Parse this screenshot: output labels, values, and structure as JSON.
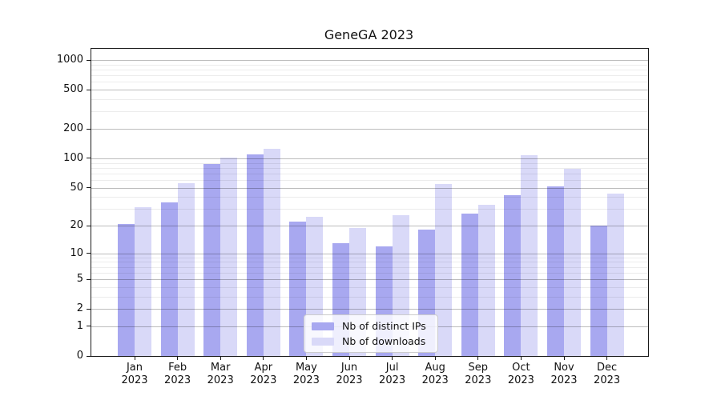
{
  "title": "GeneGA 2023",
  "colors": {
    "ips": "#a8a8f0",
    "downloads": "#d9d9f8",
    "axis": "#1a1a1a"
  },
  "legend": {
    "items": [
      {
        "label": "Nb of distinct IPs",
        "series": "ips"
      },
      {
        "label": "Nb of downloads",
        "series": "downloads"
      }
    ]
  },
  "chart_data": {
    "type": "bar",
    "title": "GeneGA 2023",
    "xlabel": "",
    "ylabel": "",
    "y_scale": "log10(value+1)",
    "grid": "on",
    "legend_position": "lower center",
    "categories": [
      "Jan 2023",
      "Feb 2023",
      "Mar 2023",
      "Apr 2023",
      "May 2023",
      "Jun 2023",
      "Jul 2023",
      "Aug 2023",
      "Sep 2023",
      "Oct 2023",
      "Nov 2023",
      "Dec 2023"
    ],
    "y_ticks": [
      0,
      1,
      2,
      5,
      10,
      20,
      50,
      100,
      200,
      500,
      1000
    ],
    "y_minor_ticks": [
      3,
      4,
      6,
      7,
      8,
      9,
      30,
      40,
      60,
      70,
      80,
      90,
      300,
      400,
      600,
      700,
      800,
      900
    ],
    "ylim": [
      0,
      1300
    ],
    "series": [
      {
        "key": "ips",
        "name": "Nb of distinct IPs",
        "values": [
          21,
          35,
          88,
          110,
          22,
          13,
          12,
          18,
          27,
          42,
          51,
          20
        ]
      },
      {
        "key": "downloads",
        "name": "Nb of downloads",
        "values": [
          31,
          56,
          101,
          125,
          25,
          19,
          26,
          54,
          33,
          108,
          78,
          43
        ]
      }
    ]
  }
}
